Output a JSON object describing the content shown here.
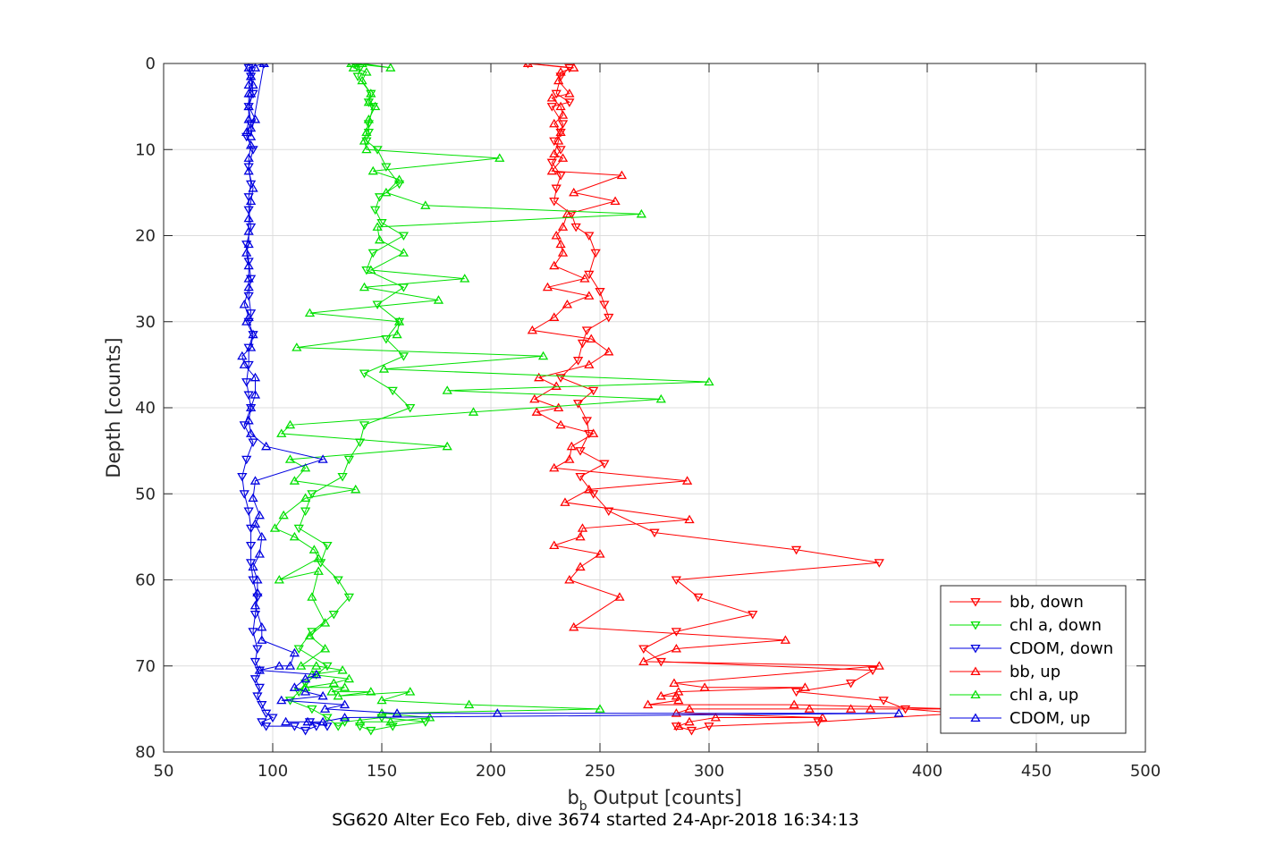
{
  "caption": "SG620 Alter Eco Feb, dive 3674 started 24-Apr-2018 16:34:13",
  "chart_data": {
    "type": "line",
    "xlabel_main": "b",
    "xlabel_sub": "b",
    "xlabel_rest": " Output [counts]",
    "ylabel": "Depth [counts]",
    "xlim": [
      50,
      500
    ],
    "ylim": [
      0,
      80
    ],
    "y_reversed": true,
    "grid": true,
    "xticks": [
      50,
      100,
      150,
      200,
      250,
      300,
      350,
      400,
      450,
      500
    ],
    "yticks": [
      0,
      10,
      20,
      30,
      40,
      50,
      60,
      70,
      80
    ],
    "legend_position": "bottom-right",
    "series": [
      {
        "name": "bb, down",
        "color": "#ff0000",
        "marker": "down",
        "x": [
          217,
          236,
          232,
          230,
          236,
          228,
          233,
          232,
          229,
          232,
          228,
          232,
          230,
          229,
          237,
          239,
          245,
          248,
          245,
          250,
          252,
          254,
          244,
          242,
          240,
          232,
          247,
          240,
          244,
          245,
          241,
          252,
          241,
          247,
          254,
          275,
          340,
          378,
          285,
          295,
          320,
          285,
          270,
          278,
          375,
          365,
          340,
          380,
          390,
          415,
          350,
          300,
          292,
          285
        ],
        "y": [
          0,
          0.5,
          1.5,
          3.5,
          4.5,
          5,
          7,
          8,
          9,
          10,
          11.5,
          13,
          14.5,
          16,
          17.5,
          19,
          20,
          22,
          24.5,
          26.5,
          28,
          29.5,
          31,
          32.5,
          34.5,
          36.5,
          38,
          39.5,
          41.5,
          43,
          45,
          46.5,
          48,
          50,
          52,
          54.5,
          56.5,
          58,
          60,
          62,
          64,
          66,
          68,
          69.5,
          70.5,
          72,
          73,
          74,
          75,
          75.5,
          76.5,
          77,
          77.5,
          77
        ]
      },
      {
        "name": "chl a, down",
        "color": "#00e000",
        "marker": "down",
        "x": [
          136,
          140,
          139,
          145,
          144,
          146,
          144,
          144,
          143,
          148,
          152,
          158,
          149,
          147,
          150,
          160,
          146,
          143,
          160,
          148,
          158,
          152,
          160,
          142,
          155,
          163,
          142,
          140,
          135,
          132,
          118,
          115,
          112,
          125,
          122,
          130,
          135,
          128,
          118,
          112,
          125,
          120,
          115,
          112,
          108,
          118,
          125,
          130,
          133,
          150,
          170,
          155,
          145,
          140
        ],
        "y": [
          0,
          0.5,
          1.5,
          3.5,
          4.5,
          5,
          7,
          8,
          9,
          10,
          12,
          14,
          15.5,
          17,
          18.5,
          20,
          22,
          24,
          26,
          28,
          30,
          32,
          34,
          36,
          38,
          40,
          42,
          44,
          46,
          48,
          50,
          52,
          54,
          56,
          58,
          60,
          62,
          64,
          66,
          68,
          70,
          71,
          72,
          73,
          74,
          75,
          76,
          77,
          76.5,
          76,
          76.5,
          77,
          77.5,
          77
        ]
      },
      {
        "name": "CDOM, down",
        "color": "#0000e0",
        "marker": "down",
        "x": [
          96,
          89,
          90,
          91,
          89,
          90,
          88,
          91,
          89,
          90,
          89,
          89,
          90,
          88,
          89,
          90,
          89,
          90,
          89,
          91,
          89,
          89,
          88,
          89,
          90,
          87,
          91,
          88,
          86,
          87,
          89,
          90,
          90,
          90,
          91,
          93,
          92,
          91,
          93,
          92,
          94,
          92,
          94,
          93,
          95,
          97,
          100,
          95,
          97,
          110,
          115,
          120,
          117,
          125
        ],
        "y": [
          0,
          0.5,
          1.5,
          3.5,
          5,
          7,
          8.5,
          10,
          12,
          14,
          15.5,
          17,
          19,
          21,
          23,
          25,
          27,
          29,
          30,
          31.5,
          33,
          35,
          37,
          38.5,
          40,
          42,
          44,
          46,
          48,
          50,
          52,
          54,
          56,
          58,
          60,
          62,
          64,
          66,
          68,
          69.5,
          70.5,
          71.5,
          72.5,
          73.5,
          74.5,
          75.5,
          76,
          76.5,
          77,
          77,
          77.5,
          77,
          76.5,
          77
        ]
      },
      {
        "name": "bb, up",
        "color": "#ff0000",
        "marker": "up",
        "x": [
          286,
          291,
          303,
          352,
          285,
          291,
          346,
          374,
          365,
          415,
          339,
          272,
          286,
          285,
          278,
          286,
          344,
          298,
          284,
          378,
          270,
          285,
          335,
          238,
          259,
          236,
          241,
          250,
          229,
          241,
          242,
          291,
          234,
          245,
          290,
          229,
          236,
          237,
          247,
          232,
          221,
          231,
          220,
          230,
          222,
          245,
          254,
          246,
          219,
          229,
          235,
          245,
          226,
          243,
          229,
          233,
          232,
          230,
          233,
          235,
          257,
          238,
          260,
          228,
          233,
          229,
          231,
          232,
          229,
          233,
          232,
          228,
          236,
          231,
          232,
          238,
          217
        ],
        "y": [
          77,
          76.5,
          76,
          76,
          75.5,
          75,
          75,
          75,
          75,
          75,
          74.5,
          74.5,
          74,
          73.5,
          73.5,
          73,
          72.5,
          72.5,
          72,
          70,
          69.5,
          68,
          67,
          65.5,
          62,
          60,
          58.5,
          57,
          56,
          55,
          54,
          53,
          51,
          49.5,
          48.5,
          47,
          46,
          44.5,
          43,
          42,
          40.5,
          40,
          39,
          37.5,
          36.5,
          35,
          33.5,
          32,
          31,
          29.5,
          28,
          27,
          26,
          25,
          23.5,
          22,
          21,
          20,
          19,
          17.5,
          16,
          15,
          13,
          12.5,
          11,
          10.5,
          9,
          8,
          7,
          6,
          5,
          4,
          3.5,
          2,
          1,
          0.5,
          0
        ]
      },
      {
        "name": "chl a, up",
        "color": "#00e000",
        "marker": "up",
        "x": [
          140,
          154,
          172,
          150,
          250,
          190,
          150,
          163,
          130,
          145,
          127,
          133,
          115,
          128,
          135,
          118,
          132,
          120,
          113,
          124,
          117,
          124,
          118,
          121,
          103,
          121,
          119,
          110,
          101,
          105,
          115,
          138,
          110,
          115,
          108,
          180,
          104,
          108,
          192,
          278,
          180,
          300,
          151,
          224,
          111,
          157,
          158,
          117,
          176,
          142,
          188,
          145,
          160,
          149,
          148,
          269,
          170,
          152,
          158,
          146,
          204,
          143,
          142,
          143,
          144,
          147,
          144,
          145,
          141,
          143,
          137,
          141,
          154,
          136
        ],
        "y": [
          76.5,
          76.5,
          76,
          75.5,
          75,
          74.5,
          74,
          73,
          73.5,
          73,
          73,
          72.5,
          72.5,
          72,
          71.5,
          71,
          70.5,
          70,
          70,
          68,
          66.5,
          65,
          62,
          59,
          60,
          57.5,
          56.5,
          55,
          54,
          52.5,
          50.5,
          49.5,
          48.5,
          47,
          46,
          44.5,
          43,
          42,
          40.5,
          39,
          38,
          37,
          35.5,
          34,
          33,
          31.5,
          30,
          29,
          27.5,
          26,
          25,
          24,
          22,
          20.5,
          19,
          17.5,
          16.5,
          15,
          13.5,
          12.5,
          11,
          10,
          9,
          8,
          6.5,
          5,
          4.5,
          3.5,
          2,
          1,
          0.5,
          0,
          0.5,
          0
        ]
      },
      {
        "name": "CDOM, up",
        "color": "#0000e0",
        "marker": "up",
        "x": [
          106,
          116,
          123,
          133,
          387,
          203,
          157,
          124,
          133,
          104,
          123,
          115,
          110,
          115,
          120,
          94,
          103,
          108,
          110,
          95,
          95,
          92,
          93,
          93,
          91,
          94,
          95,
          92,
          94,
          91,
          92,
          123,
          97,
          90,
          89,
          90,
          92,
          92,
          87,
          86,
          90,
          91,
          88,
          89,
          87,
          89,
          89,
          89,
          88,
          89,
          89,
          89,
          90,
          91,
          89,
          89,
          90,
          88,
          89,
          89,
          89,
          91,
          90,
          92,
          89,
          90,
          89,
          90,
          89,
          92,
          90,
          90,
          96,
          96
        ],
        "y": [
          76.5,
          76.5,
          76.5,
          76,
          75.5,
          75.5,
          75.5,
          75,
          74.5,
          74,
          73.5,
          73,
          72.5,
          71.5,
          71,
          70.5,
          70,
          70,
          68.5,
          67,
          65.5,
          63,
          61.5,
          60,
          58.5,
          57,
          55,
          53.5,
          52.5,
          50.5,
          48.5,
          46,
          44.5,
          43,
          41.5,
          40,
          38.5,
          36.5,
          35,
          34,
          33,
          31.5,
          30,
          29.5,
          28,
          26,
          25,
          23.5,
          22,
          21,
          19.5,
          18,
          16,
          14.5,
          12.5,
          11,
          9.5,
          8,
          6.5,
          5,
          3.5,
          2.5,
          1.5,
          0.5,
          0.5,
          1.5,
          2.5,
          3.5,
          5,
          6.5,
          7.5,
          8.5,
          0,
          0
        ]
      }
    ]
  }
}
